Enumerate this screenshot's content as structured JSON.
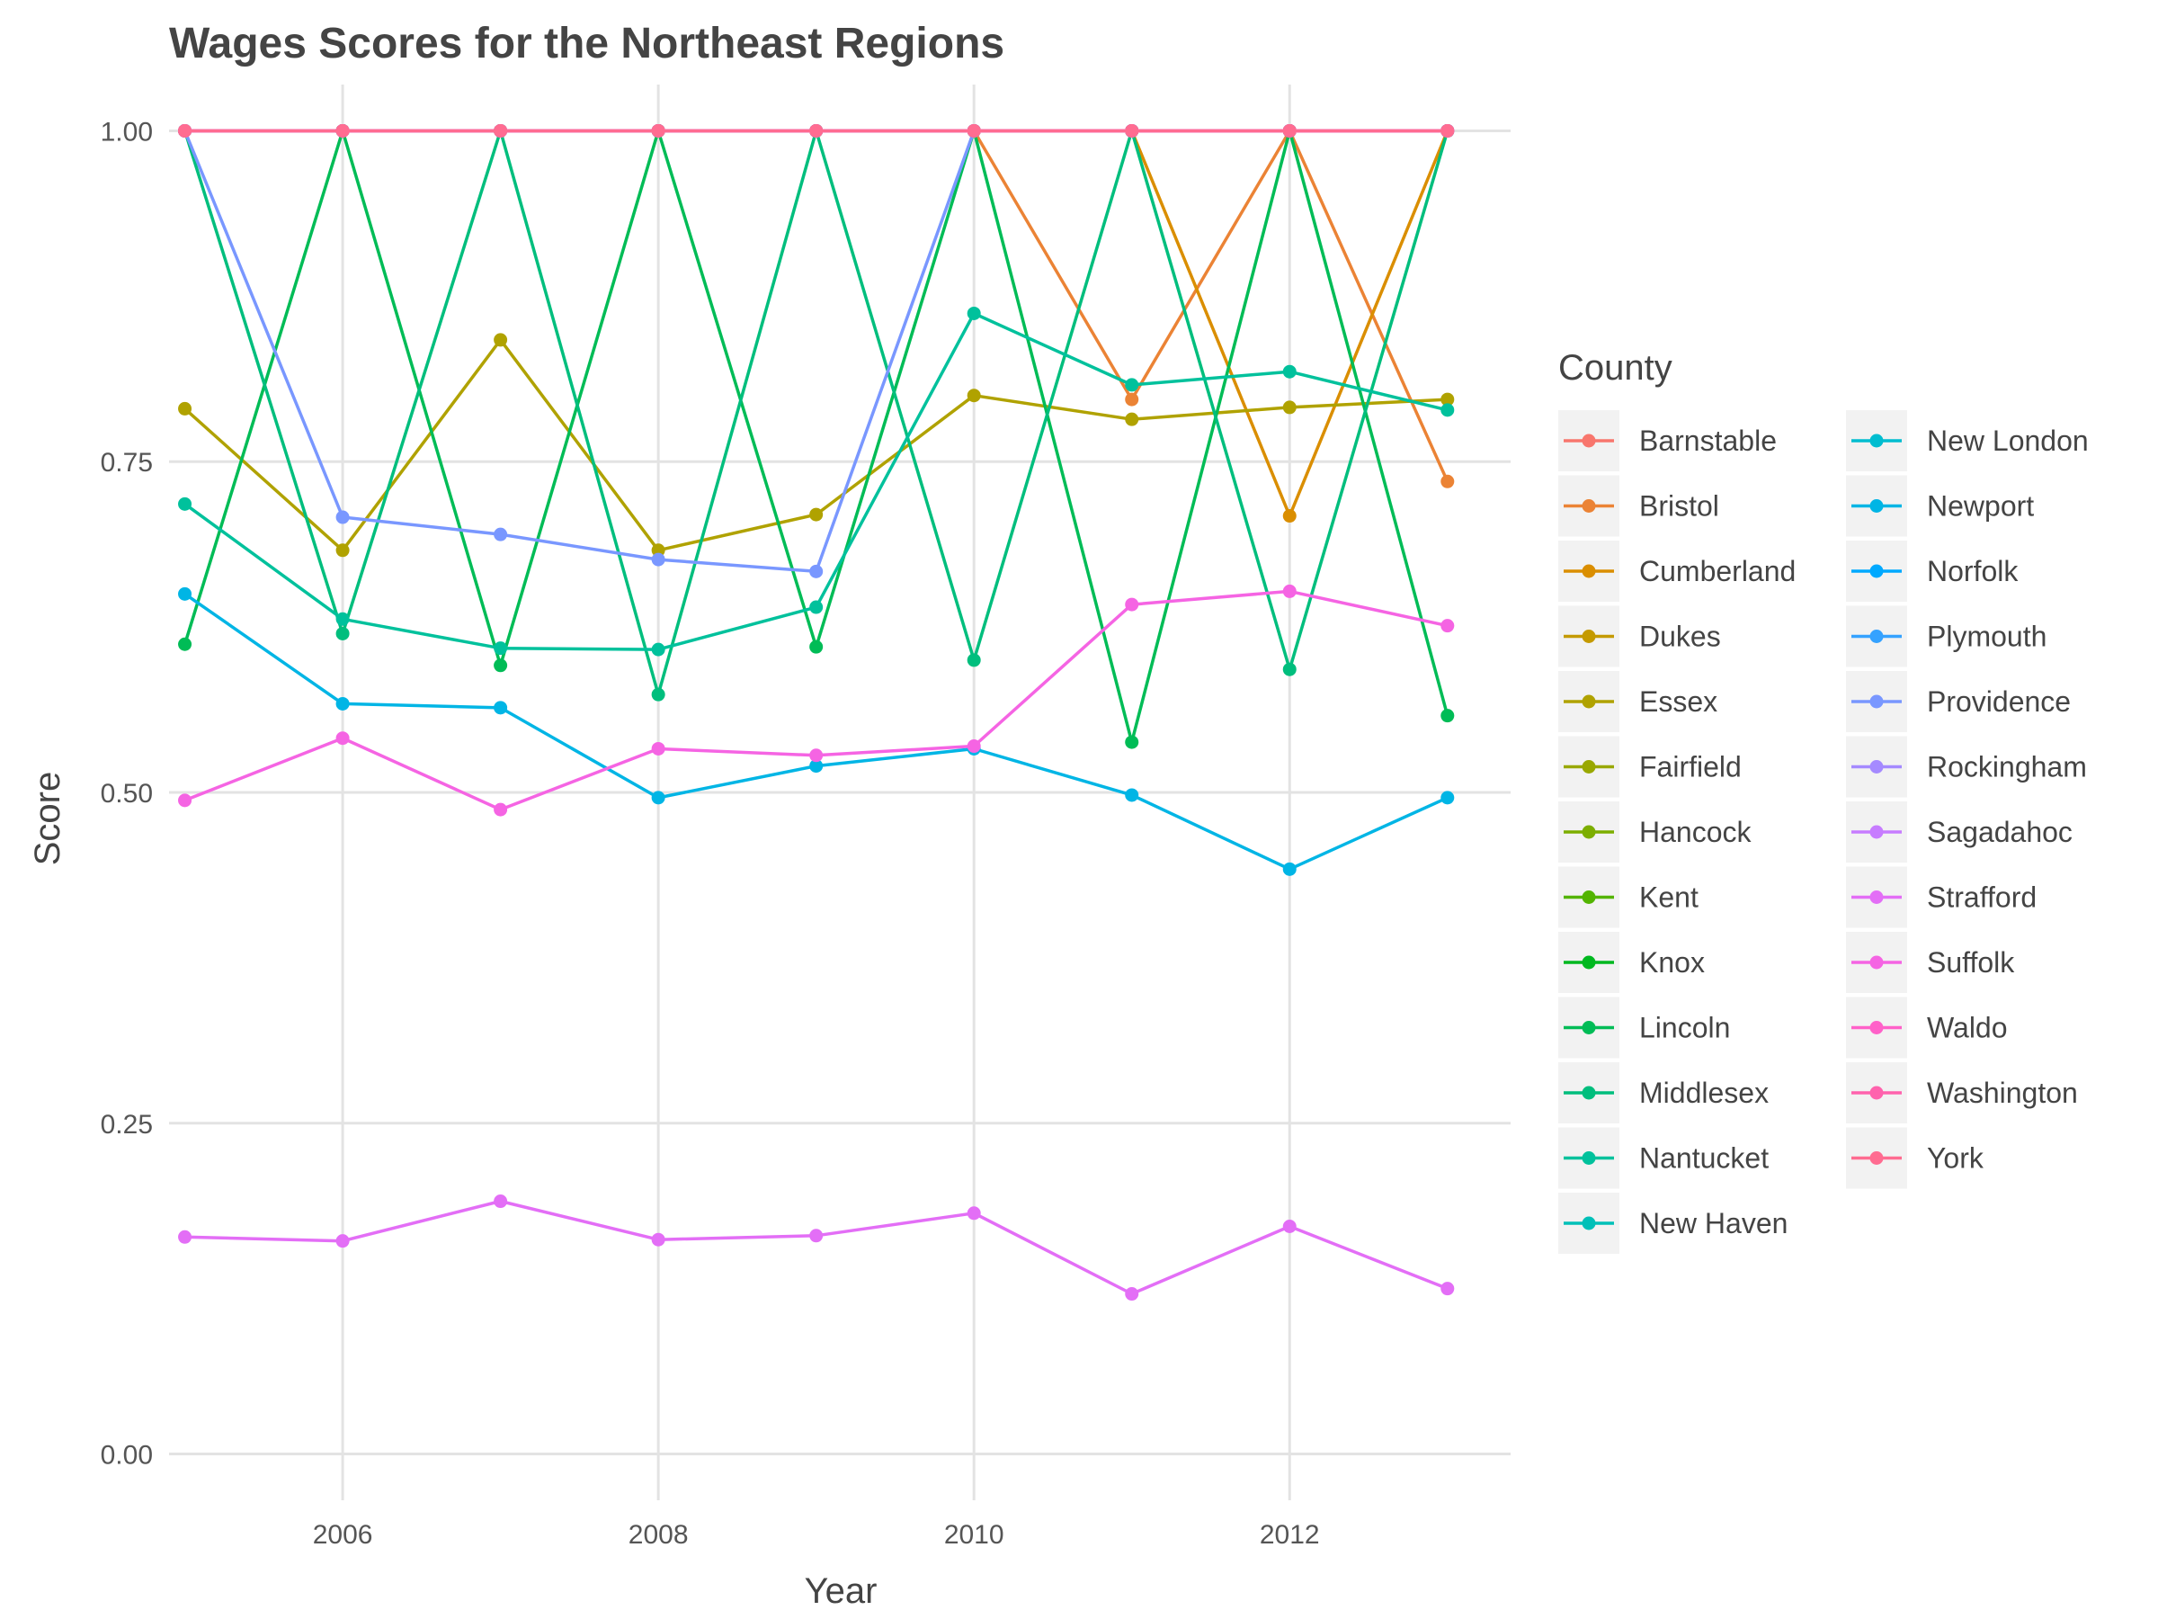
{
  "chart_data": {
    "type": "line",
    "title": "Wages Scores for the Northeast Regions",
    "xlabel": "Year",
    "ylabel": "Score",
    "xlim": [
      2004.9,
      2013.4
    ],
    "ylim": [
      -0.035,
      1.035
    ],
    "x_ticks": [
      2006,
      2008,
      2010,
      2012
    ],
    "x_tick_labels": [
      "2006",
      "2008",
      "2010",
      "2012"
    ],
    "y_ticks": [
      0,
      0.25,
      0.5,
      0.75,
      1.0
    ],
    "y_tick_labels": [
      "0.00",
      "0.25",
      "0.50",
      "0.75",
      "1.00"
    ],
    "grid": true,
    "legend_title": "County",
    "legend_position": "right",
    "x": [
      2005,
      2006,
      2007,
      2008,
      2009,
      2010,
      2011,
      2012,
      2013
    ],
    "series": [
      {
        "name": "Barnstable",
        "color": "#F8766D",
        "values": [
          1,
          1,
          1,
          1,
          1,
          1,
          1,
          1,
          1
        ]
      },
      {
        "name": "Bristol",
        "color": "#EB8335",
        "values": [
          1,
          1,
          1,
          1,
          1,
          1,
          0.797,
          1,
          0.735
        ]
      },
      {
        "name": "Cumberland",
        "color": "#DA8E00",
        "values": [
          1,
          1,
          1,
          1,
          1,
          1,
          1,
          0.709,
          1
        ]
      },
      {
        "name": "Dukes",
        "color": "#C49A00",
        "values": [
          1,
          1,
          1,
          1,
          1,
          1,
          1,
          1,
          1
        ]
      },
      {
        "name": "Essex",
        "color": "#B0A200",
        "values": [
          0.79,
          0.683,
          0.842,
          0.683,
          0.71,
          0.8,
          0.782,
          0.791,
          0.797
        ]
      },
      {
        "name": "Fairfield",
        "color": "#99A800",
        "values": [
          1,
          1,
          1,
          1,
          1,
          1,
          1,
          1,
          1
        ]
      },
      {
        "name": "Hancock",
        "color": "#7CAE00",
        "values": [
          1,
          1,
          1,
          1,
          1,
          1,
          1,
          1,
          1
        ]
      },
      {
        "name": "Kent",
        "color": "#53B400",
        "values": [
          1,
          1,
          1,
          1,
          1,
          1,
          1,
          1,
          1
        ]
      },
      {
        "name": "Knox",
        "color": "#00B81F",
        "values": [
          1,
          1,
          1,
          1,
          1,
          1,
          1,
          1,
          1
        ]
      },
      {
        "name": "Lincoln",
        "color": "#00BC56",
        "values": [
          0.612,
          1,
          0.596,
          1,
          0.61,
          1,
          0.538,
          1,
          0.558
        ]
      },
      {
        "name": "Middlesex",
        "color": "#00BE7D",
        "values": [
          1,
          0.62,
          1,
          0.574,
          1,
          0.6,
          1,
          0.593,
          1
        ]
      },
      {
        "name": "Nantucket",
        "color": "#00C19C",
        "values": [
          0.718,
          0.631,
          0.609,
          0.608,
          0.64,
          0.862,
          0.808,
          0.818,
          0.789
        ]
      },
      {
        "name": "New Haven",
        "color": "#00C0B8",
        "values": [
          1,
          1,
          1,
          1,
          1,
          1,
          1,
          1,
          1
        ]
      },
      {
        "name": "New London",
        "color": "#00BDD0",
        "values": [
          1,
          1,
          1,
          1,
          1,
          1,
          1,
          1,
          1
        ]
      },
      {
        "name": "Newport",
        "color": "#00B5E5",
        "values": [
          0.65,
          0.567,
          0.564,
          0.496,
          0.52,
          0.533,
          0.498,
          0.442,
          0.496
        ]
      },
      {
        "name": "Norfolk",
        "color": "#00A9FF",
        "values": [
          1,
          1,
          1,
          1,
          1,
          1,
          1,
          1,
          1
        ]
      },
      {
        "name": "Plymouth",
        "color": "#35A2FF",
        "values": [
          1,
          1,
          1,
          1,
          1,
          1,
          1,
          1,
          1
        ]
      },
      {
        "name": "Providence",
        "color": "#7997FF",
        "values": [
          1,
          0.708,
          0.695,
          0.676,
          0.667,
          1,
          1,
          1,
          1
        ]
      },
      {
        "name": "Rockingham",
        "color": "#A58AFF",
        "values": [
          1,
          1,
          1,
          1,
          1,
          1,
          1,
          1,
          1
        ]
      },
      {
        "name": "Sagadahoc",
        "color": "#C77CFF",
        "values": [
          1,
          1,
          1,
          1,
          1,
          1,
          1,
          1,
          1
        ]
      },
      {
        "name": "Strafford",
        "color": "#E36EF6",
        "values": [
          0.164,
          0.161,
          0.191,
          0.162,
          0.165,
          0.182,
          0.121,
          0.172,
          0.125
        ]
      },
      {
        "name": "Suffolk",
        "color": "#F564E3",
        "values": [
          0.494,
          0.541,
          0.487,
          0.533,
          0.528,
          0.535,
          0.642,
          0.652,
          0.626
        ]
      },
      {
        "name": "Waldo",
        "color": "#FF61C9",
        "values": [
          1,
          1,
          1,
          1,
          1,
          1,
          1,
          1,
          1
        ]
      },
      {
        "name": "Washington",
        "color": "#FF62AD",
        "values": [
          1,
          1,
          1,
          1,
          1,
          1,
          1,
          1,
          1
        ]
      },
      {
        "name": "York",
        "color": "#FF6C91",
        "values": [
          1,
          1,
          1,
          1,
          1,
          1,
          1,
          1,
          1
        ]
      }
    ]
  }
}
